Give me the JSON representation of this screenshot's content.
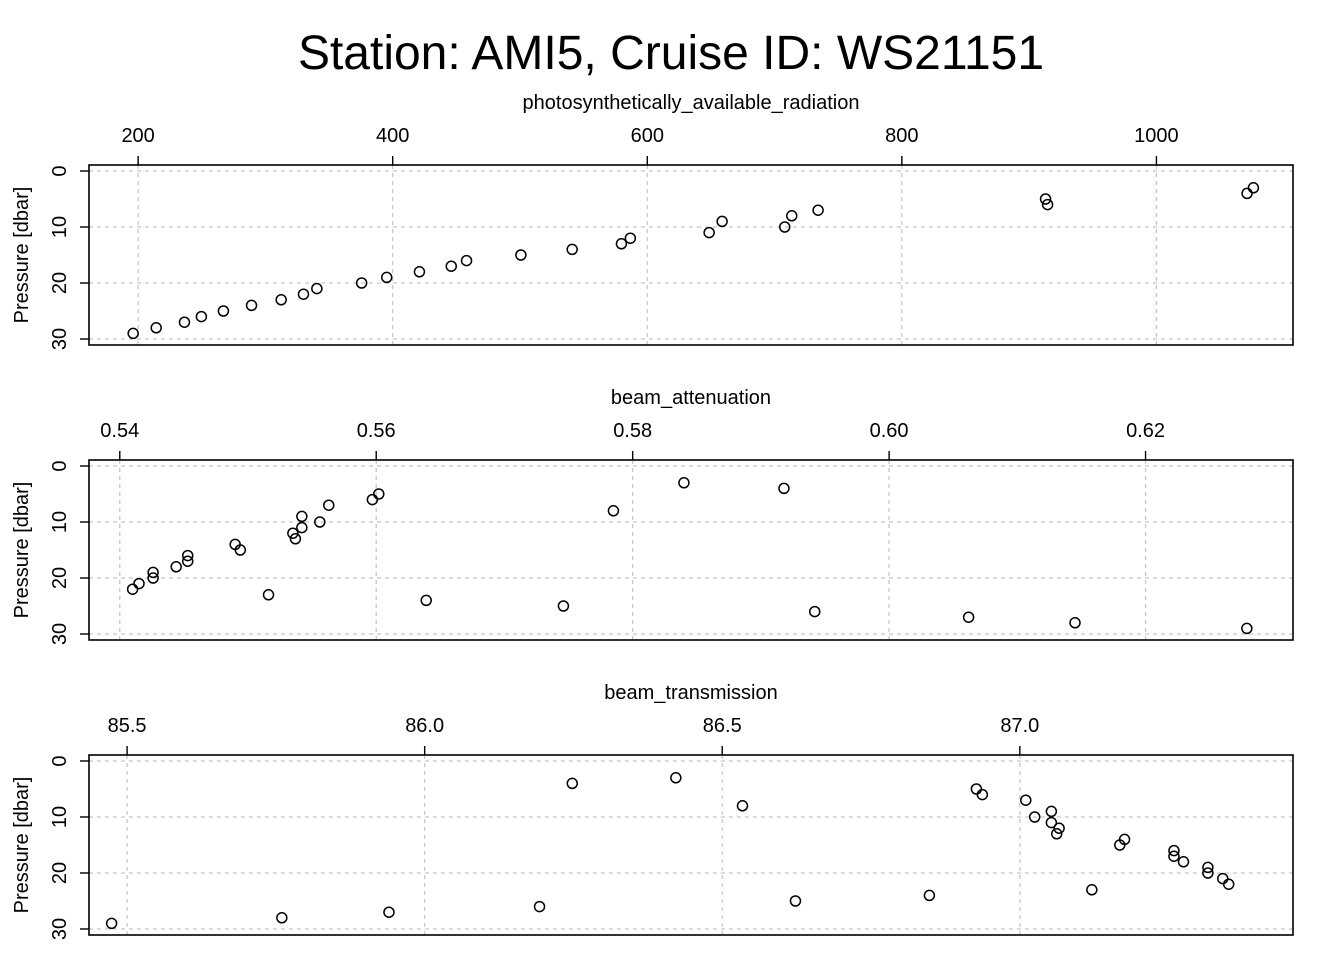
{
  "figure": {
    "title": "Station: AMI5, Cruise ID: WS21151"
  },
  "chart_data": [
    {
      "type": "scatter",
      "xlabel": "photosynthetically_available_radiation",
      "ylabel": "Pressure [dbar]",
      "x_axis_position": "top",
      "y_reversed": true,
      "grid": true,
      "xlim": [
        161.4,
        1107.3
      ],
      "ylim": [
        0,
        30
      ],
      "xticks": [
        200,
        400,
        600,
        800,
        1000
      ],
      "xtick_labels": [
        "200",
        "400",
        "600",
        "800",
        "1000"
      ],
      "yticks": [
        0,
        10,
        20,
        30
      ],
      "ytick_labels": [
        "0",
        "10",
        "20",
        "30"
      ],
      "points": [
        {
          "x": 1076.2,
          "y": 3
        },
        {
          "x": 1071.2,
          "y": 4
        },
        {
          "x": 912.9,
          "y": 5
        },
        {
          "x": 914.5,
          "y": 6
        },
        {
          "x": 734.2,
          "y": 7
        },
        {
          "x": 713.5,
          "y": 8
        },
        {
          "x": 658.8,
          "y": 9
        },
        {
          "x": 708.0,
          "y": 10
        },
        {
          "x": 648.6,
          "y": 11
        },
        {
          "x": 586.7,
          "y": 12
        },
        {
          "x": 579.7,
          "y": 13
        },
        {
          "x": 541.0,
          "y": 14
        },
        {
          "x": 500.7,
          "y": 15
        },
        {
          "x": 458.0,
          "y": 16
        },
        {
          "x": 446.0,
          "y": 17
        },
        {
          "x": 421.0,
          "y": 18
        },
        {
          "x": 395.3,
          "y": 19
        },
        {
          "x": 375.6,
          "y": 20
        },
        {
          "x": 340.4,
          "y": 21
        },
        {
          "x": 329.9,
          "y": 22
        },
        {
          "x": 312.4,
          "y": 23
        },
        {
          "x": 289.1,
          "y": 24
        },
        {
          "x": 267.0,
          "y": 25
        },
        {
          "x": 249.7,
          "y": 26
        },
        {
          "x": 236.4,
          "y": 27
        },
        {
          "x": 214.2,
          "y": 28
        },
        {
          "x": 196.1,
          "y": 29
        }
      ]
    },
    {
      "type": "scatter",
      "xlabel": "beam_attenuation",
      "ylabel": "Pressure [dbar]",
      "x_axis_position": "top",
      "y_reversed": true,
      "grid": true,
      "xlim": [
        0.5376,
        0.6315
      ],
      "ylim": [
        0,
        30
      ],
      "xticks": [
        0.54,
        0.56,
        0.58,
        0.6,
        0.62
      ],
      "xtick_labels": [
        "0.54",
        "0.56",
        "0.58",
        "0.60",
        "0.62"
      ],
      "yticks": [
        0,
        10,
        20,
        30
      ],
      "ytick_labels": [
        "0",
        "10",
        "20",
        "30"
      ],
      "points": [
        {
          "x": 0.584,
          "y": 3
        },
        {
          "x": 0.5918,
          "y": 4
        },
        {
          "x": 0.5602,
          "y": 5
        },
        {
          "x": 0.5597,
          "y": 6
        },
        {
          "x": 0.5563,
          "y": 7
        },
        {
          "x": 0.5785,
          "y": 8
        },
        {
          "x": 0.5542,
          "y": 9
        },
        {
          "x": 0.5556,
          "y": 10
        },
        {
          "x": 0.5542,
          "y": 11
        },
        {
          "x": 0.5535,
          "y": 12
        },
        {
          "x": 0.5537,
          "y": 13
        },
        {
          "x": 0.549,
          "y": 14
        },
        {
          "x": 0.5494,
          "y": 15
        },
        {
          "x": 0.5453,
          "y": 16
        },
        {
          "x": 0.5453,
          "y": 17
        },
        {
          "x": 0.5444,
          "y": 18
        },
        {
          "x": 0.5426,
          "y": 19
        },
        {
          "x": 0.5426,
          "y": 20
        },
        {
          "x": 0.5415,
          "y": 21
        },
        {
          "x": 0.541,
          "y": 22
        },
        {
          "x": 0.5516,
          "y": 23
        },
        {
          "x": 0.5639,
          "y": 24
        },
        {
          "x": 0.5746,
          "y": 25
        },
        {
          "x": 0.5942,
          "y": 26
        },
        {
          "x": 0.6062,
          "y": 27
        },
        {
          "x": 0.6145,
          "y": 28
        },
        {
          "x": 0.6279,
          "y": 29
        }
      ]
    },
    {
      "type": "scatter",
      "xlabel": "beam_transmission",
      "ylabel": "Pressure [dbar]",
      "x_axis_position": "top",
      "y_reversed": true,
      "grid": true,
      "xlim": [
        85.436,
        87.459
      ],
      "ylim": [
        0,
        30
      ],
      "xticks": [
        85.5,
        86.0,
        86.5,
        87.0
      ],
      "xtick_labels": [
        "85.5",
        "86.0",
        "86.5",
        "87.0"
      ],
      "yticks": [
        0,
        10,
        20,
        30
      ],
      "ytick_labels": [
        "0",
        "10",
        "20",
        "30"
      ],
      "points": [
        {
          "x": 86.422,
          "y": 3
        },
        {
          "x": 86.248,
          "y": 4
        },
        {
          "x": 86.927,
          "y": 5
        },
        {
          "x": 86.937,
          "y": 6
        },
        {
          "x": 87.01,
          "y": 7
        },
        {
          "x": 86.534,
          "y": 8
        },
        {
          "x": 87.053,
          "y": 9
        },
        {
          "x": 87.025,
          "y": 10
        },
        {
          "x": 87.053,
          "y": 11
        },
        {
          "x": 87.066,
          "y": 12
        },
        {
          "x": 87.062,
          "y": 13
        },
        {
          "x": 87.176,
          "y": 14
        },
        {
          "x": 87.168,
          "y": 15
        },
        {
          "x": 87.259,
          "y": 16
        },
        {
          "x": 87.259,
          "y": 17
        },
        {
          "x": 87.275,
          "y": 18
        },
        {
          "x": 87.316,
          "y": 19
        },
        {
          "x": 87.316,
          "y": 20
        },
        {
          "x": 87.341,
          "y": 21
        },
        {
          "x": 87.351,
          "y": 22
        },
        {
          "x": 87.121,
          "y": 23
        },
        {
          "x": 86.848,
          "y": 24
        },
        {
          "x": 86.623,
          "y": 25
        },
        {
          "x": 86.193,
          "y": 26
        },
        {
          "x": 85.94,
          "y": 27
        },
        {
          "x": 85.76,
          "y": 28
        },
        {
          "x": 85.474,
          "y": 29
        }
      ]
    }
  ]
}
